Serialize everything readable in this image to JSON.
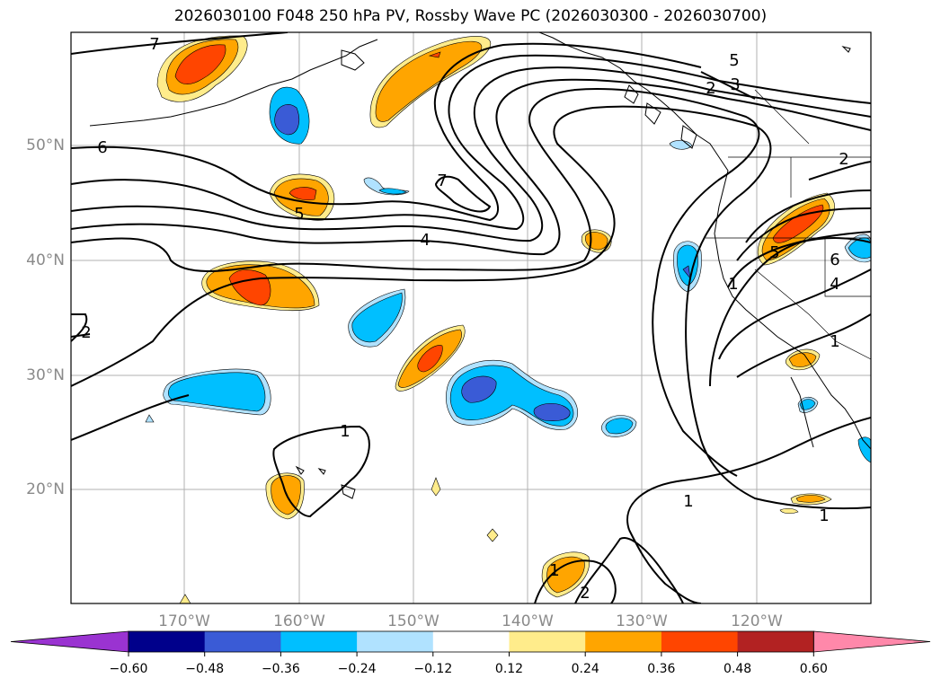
{
  "title": "2026030100 F048 250 hPa PV, Rossby Wave PC (2026030300 - 2026030700)",
  "lat_labels": [
    "50°N",
    "40°N",
    "30°N",
    "20°N"
  ],
  "lon_labels": [
    "170°W",
    "160°W",
    "150°W",
    "140°W",
    "130°W",
    "120°W"
  ],
  "contour_labels": [
    "7",
    "6",
    "5",
    "4",
    "7",
    "5",
    "3",
    "2",
    "2",
    "6",
    "4",
    "5",
    "1",
    "1",
    "1",
    "1",
    "2",
    "1",
    "2",
    "1",
    "6"
  ],
  "colorbar": {
    "ticks": [
      "−0.60",
      "−0.48",
      "−0.36",
      "−0.24",
      "−0.12",
      "0.12",
      "0.24",
      "0.36",
      "0.48",
      "0.60"
    ],
    "colors": [
      "#9a33d1",
      "#00008b",
      "#3a5bd6",
      "#00bfff",
      "#b0e2ff",
      "#ffffff",
      "#ffec8b",
      "#ffa500",
      "#ff4500",
      "#b22222",
      "#ff88aa"
    ]
  }
}
